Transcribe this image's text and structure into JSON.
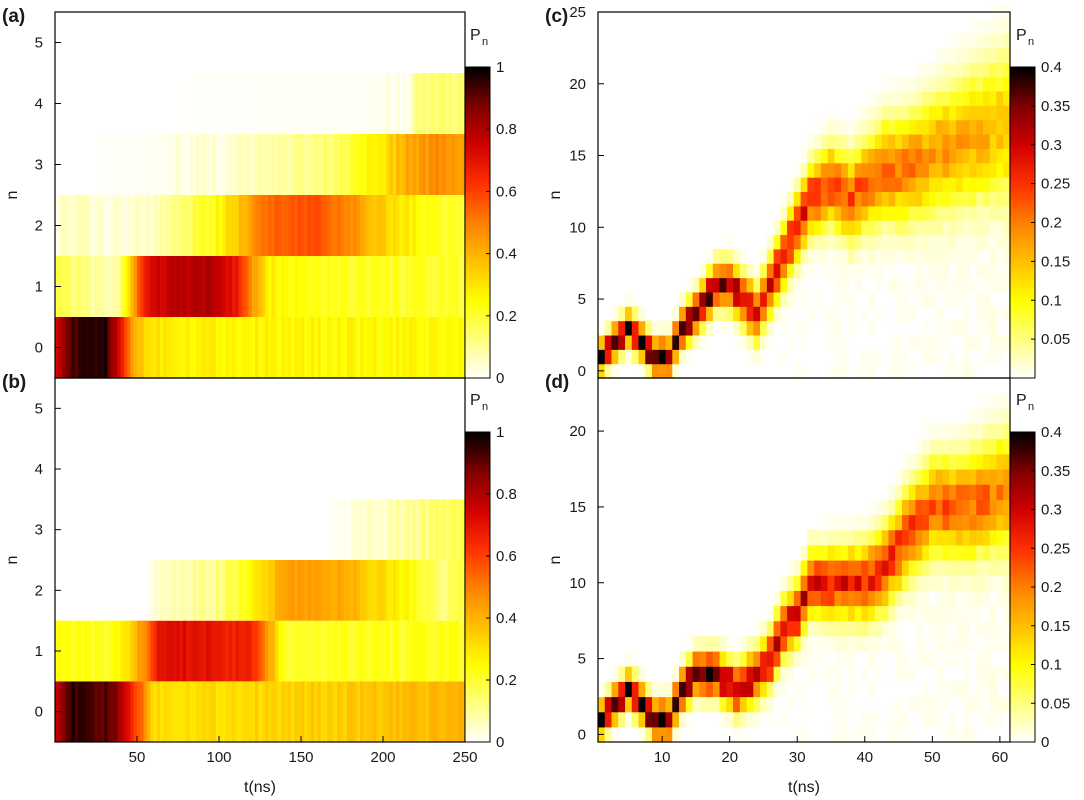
{
  "colormap": [
    "#ffffff",
    "#ffff80",
    "#ffff00",
    "#ffc000",
    "#ff8000",
    "#ff3000",
    "#d00000",
    "#800000",
    "#000000"
  ],
  "chart_data": [
    {
      "panel": "(a)",
      "type": "heatmap",
      "xlabel": "",
      "ylabel": "n",
      "xlim": [
        0,
        250
      ],
      "ylim": [
        -0.5,
        5.5
      ],
      "xticks": [],
      "xtick_labels": [],
      "yticks": [
        0,
        1,
        2,
        3,
        4,
        5
      ],
      "ytick_labels": [
        "0",
        "1",
        "2",
        "3",
        "4",
        "5"
      ],
      "colorbar": {
        "title": "P",
        "subscript": "n",
        "range": [
          0,
          1
        ],
        "ticks": [
          0,
          0.2,
          0.4,
          0.6,
          0.8,
          1
        ],
        "tick_labels": [
          "0",
          "0.2",
          "0.4",
          "0.6",
          "0.8",
          "1"
        ]
      },
      "bin_width": 2,
      "rows": [
        {
          "n": 0,
          "points": [
            [
              0,
              0.75
            ],
            [
              10,
              0.92
            ],
            [
              30,
              0.98
            ],
            [
              40,
              0.7
            ],
            [
              47,
              0.45
            ],
            [
              55,
              0.32
            ],
            [
              80,
              0.28
            ],
            [
              150,
              0.26
            ],
            [
              250,
              0.25
            ]
          ]
        },
        {
          "n": 1,
          "points": [
            [
              0,
              0.2
            ],
            [
              25,
              0.08
            ],
            [
              38,
              0.08
            ],
            [
              45,
              0.3
            ],
            [
              55,
              0.7
            ],
            [
              70,
              0.78
            ],
            [
              95,
              0.8
            ],
            [
              110,
              0.7
            ],
            [
              120,
              0.45
            ],
            [
              130,
              0.28
            ],
            [
              170,
              0.22
            ],
            [
              250,
              0.2
            ]
          ]
        },
        {
          "n": 2,
          "points": [
            [
              0,
              0.05
            ],
            [
              60,
              0.05
            ],
            [
              80,
              0.15
            ],
            [
              100,
              0.25
            ],
            [
              115,
              0.4
            ],
            [
              130,
              0.55
            ],
            [
              160,
              0.58
            ],
            [
              185,
              0.45
            ],
            [
              205,
              0.32
            ],
            [
              230,
              0.22
            ],
            [
              250,
              0.2
            ]
          ]
        },
        {
          "n": 3,
          "points": [
            [
              0,
              0
            ],
            [
              60,
              0.01
            ],
            [
              140,
              0.08
            ],
            [
              170,
              0.14
            ],
            [
              200,
              0.3
            ],
            [
              215,
              0.42
            ],
            [
              235,
              0.48
            ],
            [
              250,
              0.45
            ]
          ]
        },
        {
          "n": 4,
          "points": [
            [
              0,
              0
            ],
            [
              190,
              0.01
            ],
            [
              215,
              0.03
            ],
            [
              222,
              0.12
            ],
            [
              250,
              0.15
            ]
          ]
        },
        {
          "n": 5,
          "points": [
            [
              0,
              0
            ],
            [
              250,
              0
            ]
          ]
        }
      ]
    },
    {
      "panel": "(b)",
      "type": "heatmap",
      "xlabel": "t(ns)",
      "ylabel": "n",
      "xlim": [
        0,
        250
      ],
      "ylim": [
        -0.5,
        5.5
      ],
      "xticks": [
        50,
        100,
        150,
        200,
        250
      ],
      "xtick_labels": [
        "50",
        "100",
        "150",
        "200",
        "250"
      ],
      "yticks": [
        0,
        1,
        2,
        3,
        4,
        5
      ],
      "ytick_labels": [
        "0",
        "1",
        "2",
        "3",
        "4",
        "5"
      ],
      "colorbar": {
        "title": "P",
        "subscript": "n",
        "range": [
          0,
          1
        ],
        "ticks": [
          0,
          0.2,
          0.4,
          0.6,
          0.8,
          1
        ],
        "tick_labels": [
          "0",
          "0.2",
          "0.4",
          "0.6",
          "0.8",
          "1"
        ]
      },
      "bin_width": 2,
      "rows": [
        {
          "n": 0,
          "points": [
            [
              0,
              0.78
            ],
            [
              10,
              0.95
            ],
            [
              35,
              0.9
            ],
            [
              45,
              0.7
            ],
            [
              52,
              0.55
            ],
            [
              60,
              0.32
            ],
            [
              100,
              0.32
            ],
            [
              180,
              0.35
            ],
            [
              250,
              0.4
            ]
          ]
        },
        {
          "n": 1,
          "points": [
            [
              0,
              0.25
            ],
            [
              30,
              0.2
            ],
            [
              45,
              0.3
            ],
            [
              55,
              0.5
            ],
            [
              65,
              0.72
            ],
            [
              90,
              0.7
            ],
            [
              120,
              0.65
            ],
            [
              130,
              0.45
            ],
            [
              140,
              0.22
            ],
            [
              250,
              0.22
            ]
          ]
        },
        {
          "n": 2,
          "points": [
            [
              0,
              0
            ],
            [
              55,
              0
            ],
            [
              65,
              0.05
            ],
            [
              100,
              0.12
            ],
            [
              125,
              0.3
            ],
            [
              140,
              0.45
            ],
            [
              175,
              0.42
            ],
            [
              200,
              0.32
            ],
            [
              225,
              0.2
            ],
            [
              235,
              0.12
            ],
            [
              250,
              0.2
            ]
          ]
        },
        {
          "n": 3,
          "points": [
            [
              0,
              0
            ],
            [
              165,
              0
            ],
            [
              175,
              0.02
            ],
            [
              200,
              0.06
            ],
            [
              235,
              0.15
            ],
            [
              250,
              0.2
            ]
          ]
        },
        {
          "n": 4,
          "points": [
            [
              0,
              0
            ],
            [
              250,
              0
            ]
          ]
        },
        {
          "n": 5,
          "points": [
            [
              0,
              0
            ],
            [
              250,
              0
            ]
          ]
        }
      ]
    },
    {
      "panel": "(c)",
      "type": "heatmap",
      "xlabel": "",
      "ylabel": "n",
      "xlim": [
        0.5,
        61.5
      ],
      "ylim": [
        -0.5,
        25
      ],
      "xticks": [],
      "xtick_labels": [],
      "yticks": [
        0,
        5,
        10,
        15,
        20,
        25
      ],
      "ytick_labels": [
        "0",
        "5",
        "10",
        "15",
        "20",
        "25"
      ],
      "colorbar": {
        "title": "P",
        "subscript": "n",
        "range": [
          0,
          0.4
        ],
        "ticks": [
          0.05,
          0.1,
          0.15,
          0.2,
          0.25,
          0.3,
          0.35,
          0.4
        ],
        "tick_labels": [
          "0.05",
          "0.1",
          "0.15",
          "0.2",
          "0.25",
          "0.3",
          "0.35",
          "0.4"
        ]
      },
      "peak": [
        [
          1,
          1
        ],
        [
          3,
          2
        ],
        [
          5,
          3
        ],
        [
          7,
          2
        ],
        [
          9,
          1
        ],
        [
          11,
          1
        ],
        [
          13,
          3
        ],
        [
          15,
          4
        ],
        [
          18,
          6
        ],
        [
          20,
          6
        ],
        [
          22,
          5
        ],
        [
          24,
          4
        ],
        [
          26,
          6
        ],
        [
          28,
          8
        ],
        [
          30,
          10
        ],
        [
          32,
          12
        ],
        [
          35,
          13
        ],
        [
          38,
          12
        ],
        [
          40,
          13
        ],
        [
          43,
          14
        ],
        [
          46,
          14
        ],
        [
          50,
          15
        ],
        [
          55,
          16
        ],
        [
          60,
          17
        ]
      ],
      "band_width": [
        [
          1,
          0.7
        ],
        [
          12,
          0.8
        ],
        [
          25,
          1.2
        ],
        [
          40,
          2.0
        ],
        [
          61,
          3.2
        ]
      ],
      "peak_height": [
        [
          1,
          0.4
        ],
        [
          12,
          0.38
        ],
        [
          25,
          0.3
        ],
        [
          40,
          0.22
        ],
        [
          61,
          0.15
        ]
      ]
    },
    {
      "panel": "(d)",
      "type": "heatmap",
      "xlabel": "t(ns)",
      "ylabel": "n",
      "xlim": [
        0.5,
        61.5
      ],
      "ylim": [
        -0.5,
        23.5
      ],
      "xticks": [
        10,
        20,
        30,
        40,
        50,
        60
      ],
      "xtick_labels": [
        "10",
        "20",
        "30",
        "40",
        "50",
        "60"
      ],
      "yticks": [
        0,
        5,
        10,
        15,
        20
      ],
      "ytick_labels": [
        "0",
        "5",
        "10",
        "15",
        "20"
      ],
      "colorbar": {
        "title": "P",
        "subscript": "n",
        "range": [
          0,
          0.4
        ],
        "ticks": [
          0,
          0.05,
          0.1,
          0.15,
          0.2,
          0.25,
          0.3,
          0.35,
          0.4
        ],
        "tick_labels": [
          "0",
          "0.05",
          "0.1",
          "0.15",
          "0.2",
          "0.25",
          "0.3",
          "0.35",
          "0.4"
        ]
      },
      "peak": [
        [
          1,
          1
        ],
        [
          3,
          2
        ],
        [
          5,
          3
        ],
        [
          7,
          2
        ],
        [
          9,
          1
        ],
        [
          11,
          1
        ],
        [
          13,
          3
        ],
        [
          15,
          4
        ],
        [
          18,
          4
        ],
        [
          21,
          3
        ],
        [
          24,
          4
        ],
        [
          26,
          5
        ],
        [
          28,
          7
        ],
        [
          30,
          8
        ],
        [
          32,
          10
        ],
        [
          35,
          10
        ],
        [
          38,
          10
        ],
        [
          40,
          10
        ],
        [
          43,
          11
        ],
        [
          46,
          13
        ],
        [
          50,
          15
        ],
        [
          55,
          15
        ],
        [
          60,
          16
        ]
      ],
      "band_width": [
        [
          1,
          0.7
        ],
        [
          12,
          0.8
        ],
        [
          25,
          1.1
        ],
        [
          40,
          1.6
        ],
        [
          61,
          2.4
        ]
      ],
      "peak_height": [
        [
          1,
          0.4
        ],
        [
          12,
          0.38
        ],
        [
          25,
          0.32
        ],
        [
          40,
          0.26
        ],
        [
          61,
          0.2
        ]
      ]
    }
  ]
}
